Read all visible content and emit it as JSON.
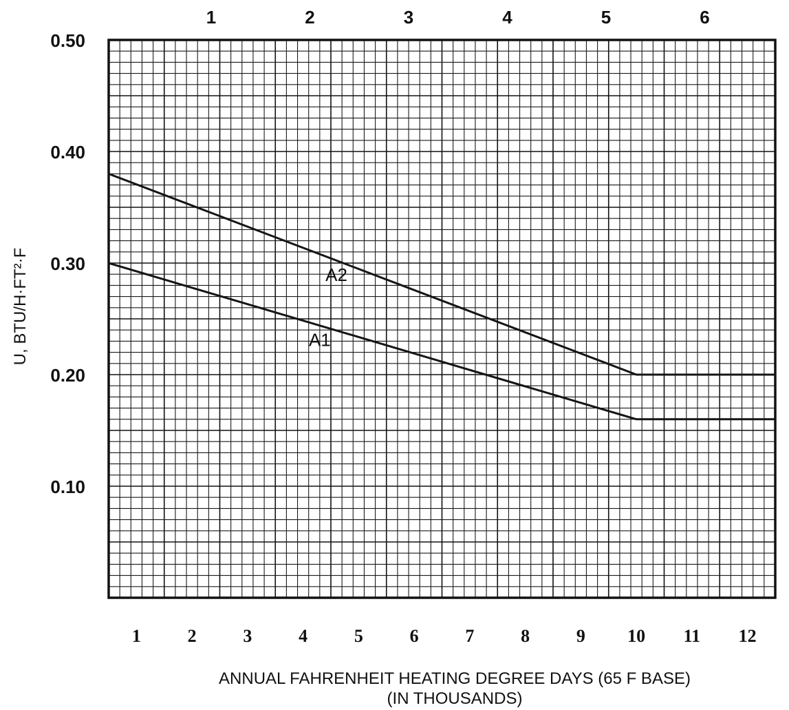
{
  "chart_data": {
    "type": "line",
    "title": "",
    "ylabel": "U, BTU/H·FT²·F",
    "xlabel": "ANNUAL FAHRENHEIT HEATING DEGREE DAYS (65 F BASE)",
    "xlabel_line2": "(IN THOUSANDS)",
    "x_ticks": [
      "1",
      "2",
      "3",
      "4",
      "5",
      "6",
      "7",
      "8",
      "9",
      "10",
      "11",
      "12"
    ],
    "x_tick_values": [
      1,
      2,
      3,
      4,
      5,
      6,
      7,
      8,
      9,
      10,
      11,
      12
    ],
    "top_ticks": [
      "1",
      "2",
      "3",
      "4",
      "5",
      "6"
    ],
    "y_ticks": [
      "0.50",
      "0.40",
      "0.30",
      "0.20",
      "0.10"
    ],
    "y_tick_values": [
      0.5,
      0.4,
      0.3,
      0.2,
      0.1
    ],
    "xlim": [
      0.5,
      12.5
    ],
    "ylim": [
      0.0,
      0.5
    ],
    "grid": true,
    "series": [
      {
        "name": "A2",
        "x": [
          0.5,
          10.0,
          12.5
        ],
        "y": [
          0.38,
          0.2,
          0.2
        ]
      },
      {
        "name": "A1",
        "x": [
          0.5,
          10.0,
          12.5
        ],
        "y": [
          0.3,
          0.16,
          0.16
        ]
      }
    ]
  }
}
